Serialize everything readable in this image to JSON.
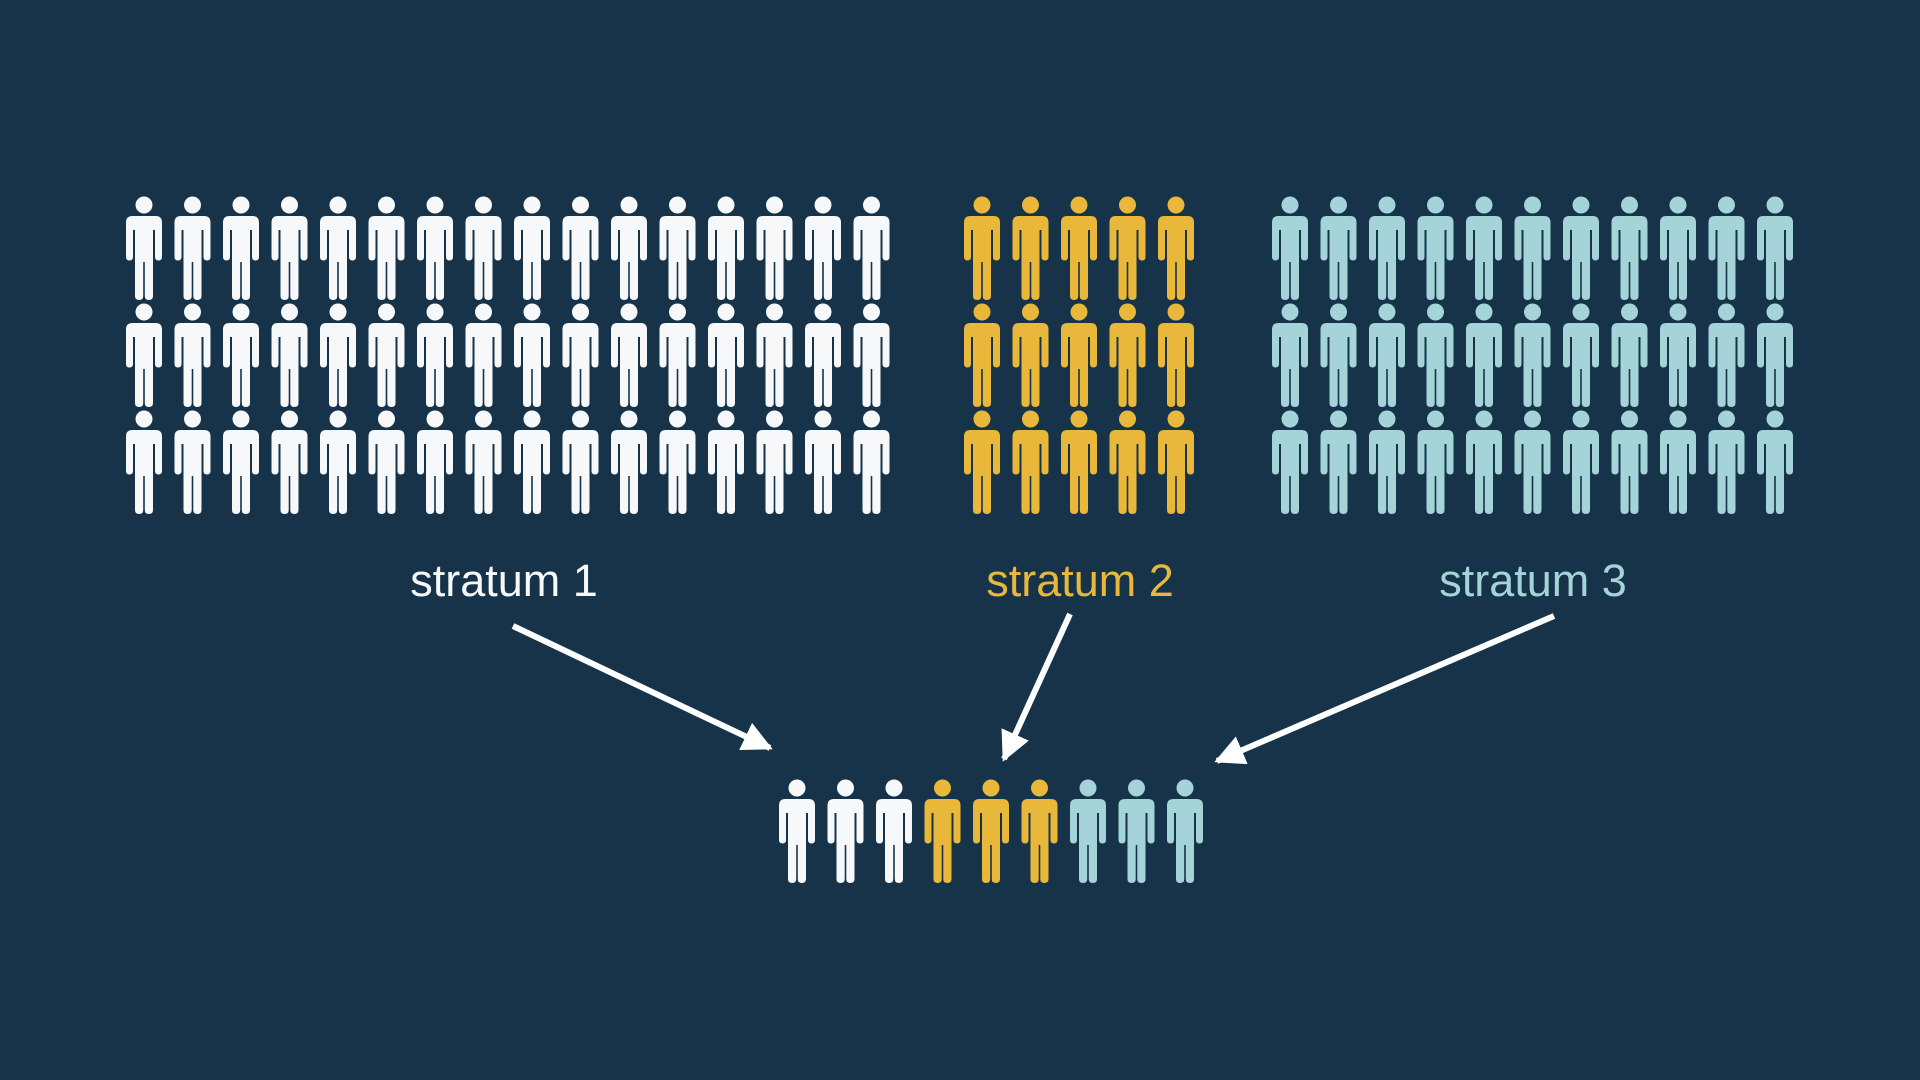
{
  "background_color": "#16334a",
  "arrow_color": "#ffffff",
  "person_icon": "person-icon",
  "strata": [
    {
      "label": "stratum 1",
      "color": "#f7f8fa",
      "rows": 3,
      "cols": 16,
      "count": 48
    },
    {
      "label": "stratum 2",
      "color": "#e9b83b",
      "rows": 3,
      "cols": 5,
      "count": 15
    },
    {
      "label": "stratum 3",
      "color": "#a4d4d8",
      "rows": 3,
      "cols": 11,
      "count": 33
    }
  ],
  "sample": {
    "count": 9,
    "per_stratum": [
      3,
      3,
      3
    ]
  }
}
